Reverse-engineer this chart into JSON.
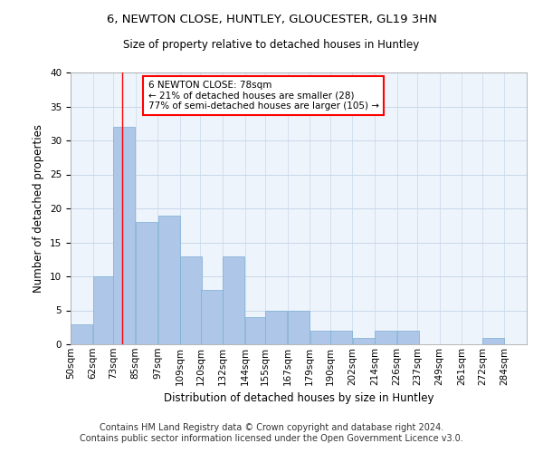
{
  "title_line1": "6, NEWTON CLOSE, HUNTLEY, GLOUCESTER, GL19 3HN",
  "title_line2": "Size of property relative to detached houses in Huntley",
  "xlabel": "Distribution of detached houses by size in Huntley",
  "ylabel": "Number of detached properties",
  "bar_edges": [
    50,
    62,
    73,
    85,
    97,
    109,
    120,
    132,
    144,
    155,
    167,
    179,
    190,
    202,
    214,
    226,
    237,
    249,
    261,
    272,
    284
  ],
  "bar_heights": [
    3,
    10,
    32,
    18,
    19,
    13,
    8,
    13,
    4,
    5,
    5,
    2,
    2,
    1,
    2,
    2,
    0,
    0,
    0,
    1,
    0
  ],
  "bar_color": "#aec6e8",
  "bar_edgecolor": "#7aadd4",
  "bar_linewidth": 0.5,
  "grid_color": "#c8d8ea",
  "bg_color": "#eef4fb",
  "red_line_x": 78,
  "annotation_text": "6 NEWTON CLOSE: 78sqm\n← 21% of detached houses are smaller (28)\n77% of semi-detached houses are larger (105) →",
  "annotation_box_color": "white",
  "annotation_box_edgecolor": "red",
  "ylim": [
    0,
    40
  ],
  "yticks": [
    0,
    5,
    10,
    15,
    20,
    25,
    30,
    35,
    40
  ],
  "tick_labels": [
    "50sqm",
    "62sqm",
    "73sqm",
    "85sqm",
    "97sqm",
    "109sqm",
    "120sqm",
    "132sqm",
    "144sqm",
    "155sqm",
    "167sqm",
    "179sqm",
    "190sqm",
    "202sqm",
    "214sqm",
    "226sqm",
    "237sqm",
    "249sqm",
    "261sqm",
    "272sqm",
    "284sqm"
  ],
  "footer_line1": "Contains HM Land Registry data © Crown copyright and database right 2024.",
  "footer_line2": "Contains public sector information licensed under the Open Government Licence v3.0.",
  "footer_fontsize": 7.0,
  "title_fontsize": 9.5,
  "subtitle_fontsize": 8.5,
  "ylabel_fontsize": 8.5,
  "xlabel_fontsize": 8.5,
  "tick_fontsize": 7.5,
  "annot_fontsize": 7.5
}
